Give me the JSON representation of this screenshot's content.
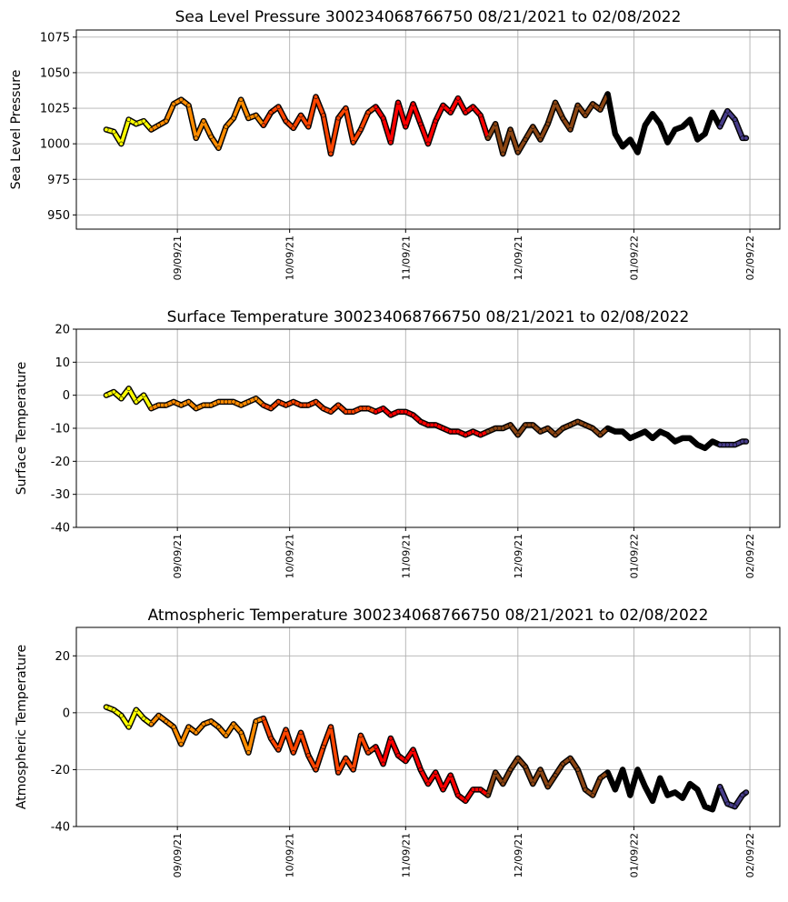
{
  "chart_data": [
    {
      "type": "line",
      "title": "Sea Level Pressure 300234068766750  08/21/2021 to 02/08/2022",
      "xlabel": "",
      "ylabel": "Sea Level Pressure",
      "ylim": [
        940,
        1080
      ],
      "yticks": [
        950,
        975,
        1000,
        1025,
        1050,
        1075
      ],
      "grid": true,
      "x_unit": "days since 08/21/2021",
      "xlim": [
        -8,
        180
      ],
      "xticks": [
        {
          "day": 19,
          "label": "09/09/21"
        },
        {
          "day": 49,
          "label": "10/09/21"
        },
        {
          "day": 80,
          "label": "11/09/21"
        },
        {
          "day": 110,
          "label": "12/09/21"
        },
        {
          "day": 141,
          "label": "01/09/22"
        },
        {
          "day": 172,
          "label": "02/09/22"
        }
      ],
      "x": [
        0,
        2,
        4,
        6,
        8,
        10,
        12,
        14,
        16,
        18,
        20,
        22,
        24,
        26,
        28,
        30,
        32,
        34,
        36,
        38,
        40,
        42,
        44,
        46,
        48,
        50,
        52,
        54,
        56,
        58,
        60,
        62,
        64,
        66,
        68,
        70,
        72,
        74,
        76,
        78,
        80,
        82,
        84,
        86,
        88,
        90,
        92,
        94,
        96,
        98,
        100,
        102,
        104,
        106,
        108,
        110,
        112,
        114,
        116,
        118,
        120,
        122,
        124,
        126,
        128,
        130,
        132,
        134,
        136,
        138,
        140,
        142,
        144,
        146,
        148,
        150,
        152,
        154,
        156,
        158,
        160,
        162,
        164,
        166,
        168,
        170,
        171
      ],
      "y": [
        1010,
        1008.5,
        1000,
        1017,
        1014,
        1016,
        1010,
        1013,
        1016,
        1028,
        1031,
        1027,
        1004,
        1016,
        1005,
        997,
        1012,
        1018,
        1031,
        1018,
        1020,
        1013,
        1022,
        1026,
        1016,
        1011,
        1020,
        1012,
        1033,
        1020,
        993,
        1018,
        1025,
        1001,
        1010,
        1022,
        1026,
        1018,
        1001,
        1029,
        1012,
        1028,
        1014,
        1000,
        1016,
        1027,
        1022,
        1032,
        1022,
        1026,
        1020,
        1004,
        1014,
        993,
        1010,
        994,
        1003,
        1012,
        1003,
        1014,
        1029,
        1018,
        1010,
        1027,
        1020,
        1028,
        1024,
        1035,
        1007,
        998,
        1003,
        994,
        1013,
        1021,
        1014,
        1001,
        1010,
        1012,
        1017,
        1003,
        1007,
        1022,
        1012,
        1023,
        1017,
        1004,
        1004
      ]
    },
    {
      "type": "line",
      "title": "Surface Temperature 300234068766750  08/21/2021 to 02/08/2022",
      "xlabel": "",
      "ylabel": "Surface Temperature",
      "ylim": [
        -40,
        20
      ],
      "yticks": [
        -40,
        -30,
        -20,
        -10,
        0,
        10,
        20
      ],
      "grid": true,
      "x_unit": "days since 08/21/2021",
      "xlim": [
        -8,
        180
      ],
      "xticks": [
        {
          "day": 19,
          "label": "09/09/21"
        },
        {
          "day": 49,
          "label": "10/09/21"
        },
        {
          "day": 80,
          "label": "11/09/21"
        },
        {
          "day": 110,
          "label": "12/09/21"
        },
        {
          "day": 141,
          "label": "01/09/22"
        },
        {
          "day": 172,
          "label": "02/09/22"
        }
      ],
      "x": [
        0,
        2,
        4,
        6,
        8,
        10,
        12,
        14,
        16,
        18,
        20,
        22,
        24,
        26,
        28,
        30,
        32,
        34,
        36,
        38,
        40,
        42,
        44,
        46,
        48,
        50,
        52,
        54,
        56,
        58,
        60,
        62,
        64,
        66,
        68,
        70,
        72,
        74,
        76,
        78,
        80,
        82,
        84,
        86,
        88,
        90,
        92,
        94,
        96,
        98,
        100,
        102,
        104,
        106,
        108,
        110,
        112,
        114,
        116,
        118,
        120,
        122,
        124,
        126,
        128,
        130,
        132,
        134,
        136,
        138,
        140,
        142,
        144,
        146,
        148,
        150,
        152,
        154,
        156,
        158,
        160,
        162,
        164,
        166,
        168,
        170,
        171
      ],
      "y": [
        0,
        1,
        -1,
        2,
        -2,
        0,
        -4,
        -3,
        -3,
        -2,
        -3,
        -2,
        -4,
        -3,
        -3,
        -2,
        -2,
        -2,
        -3,
        -2,
        -1,
        -3,
        -4,
        -2,
        -3,
        -2,
        -3,
        -3,
        -2,
        -4,
        -5,
        -3,
        -5,
        -5,
        -4,
        -4,
        -5,
        -4,
        -6,
        -5,
        -5,
        -6,
        -8,
        -9,
        -9,
        -10,
        -11,
        -11,
        -12,
        -11,
        -12,
        -11,
        -10,
        -10,
        -9,
        -12,
        -9,
        -9,
        -11,
        -10,
        -12,
        -10,
        -9,
        -8,
        -9,
        -10,
        -12,
        -10,
        -11,
        -11,
        -13,
        -12,
        -11,
        -13,
        -11,
        -12,
        -14,
        -13,
        -13,
        -15,
        -16,
        -14,
        -15,
        -15,
        -15,
        -14,
        -14
      ]
    },
    {
      "type": "line",
      "title": "Atmospheric Temperature 300234068766750  08/21/2021 to 02/08/2022",
      "xlabel": "",
      "ylabel": "Atmospheric Temperature",
      "ylim": [
        -40,
        30
      ],
      "yticks": [
        -40,
        -20,
        0,
        20
      ],
      "grid": true,
      "x_unit": "days since 08/21/2021",
      "xlim": [
        -8,
        180
      ],
      "xticks": [
        {
          "day": 19,
          "label": "09/09/21"
        },
        {
          "day": 49,
          "label": "10/09/21"
        },
        {
          "day": 80,
          "label": "11/09/21"
        },
        {
          "day": 110,
          "label": "12/09/21"
        },
        {
          "day": 141,
          "label": "01/09/22"
        },
        {
          "day": 172,
          "label": "02/09/22"
        }
      ],
      "x": [
        0,
        2,
        4,
        6,
        8,
        10,
        12,
        14,
        16,
        18,
        20,
        22,
        24,
        26,
        28,
        30,
        32,
        34,
        36,
        38,
        40,
        42,
        44,
        46,
        48,
        50,
        52,
        54,
        56,
        58,
        60,
        62,
        64,
        66,
        68,
        70,
        72,
        74,
        76,
        78,
        80,
        82,
        84,
        86,
        88,
        90,
        92,
        94,
        96,
        98,
        100,
        102,
        104,
        106,
        108,
        110,
        112,
        114,
        116,
        118,
        120,
        122,
        124,
        126,
        128,
        130,
        132,
        134,
        136,
        138,
        140,
        142,
        144,
        146,
        148,
        150,
        152,
        154,
        156,
        158,
        160,
        162,
        164,
        166,
        168,
        170,
        171
      ],
      "y": [
        2,
        1,
        -1,
        -5,
        1,
        -2,
        -4,
        -1,
        -3,
        -5,
        -11,
        -5,
        -7,
        -4,
        -3,
        -5,
        -8,
        -4,
        -7,
        -14,
        -3,
        -2,
        -9,
        -13,
        -6,
        -14,
        -7,
        -15,
        -20,
        -12,
        -5,
        -21,
        -16,
        -20,
        -8,
        -14,
        -12,
        -18,
        -9,
        -15,
        -17,
        -13,
        -20,
        -25,
        -21,
        -27,
        -22,
        -29,
        -31,
        -27,
        -27,
        -29,
        -21,
        -25,
        -20,
        -16,
        -19,
        -25,
        -20,
        -26,
        -22,
        -18,
        -16,
        -20,
        -27,
        -29,
        -23,
        -21,
        -27,
        -20,
        -29,
        -20,
        -26,
        -31,
        -23,
        -29,
        -28,
        -30,
        -25,
        -27,
        -33,
        -34,
        -26,
        -32,
        -33,
        -29,
        -28
      ]
    }
  ],
  "month_colors": [
    {
      "from_day": 0,
      "color": "#ffff00"
    },
    {
      "from_day": 11,
      "color": "#ff8c00"
    },
    {
      "from_day": 41,
      "color": "#ff4500"
    },
    {
      "from_day": 72,
      "color": "#ff0000"
    },
    {
      "from_day": 102,
      "color": "#8b4513"
    },
    {
      "from_day": 133,
      "color": "#000000"
    },
    {
      "from_day": 164,
      "color": "#483d8b"
    }
  ]
}
